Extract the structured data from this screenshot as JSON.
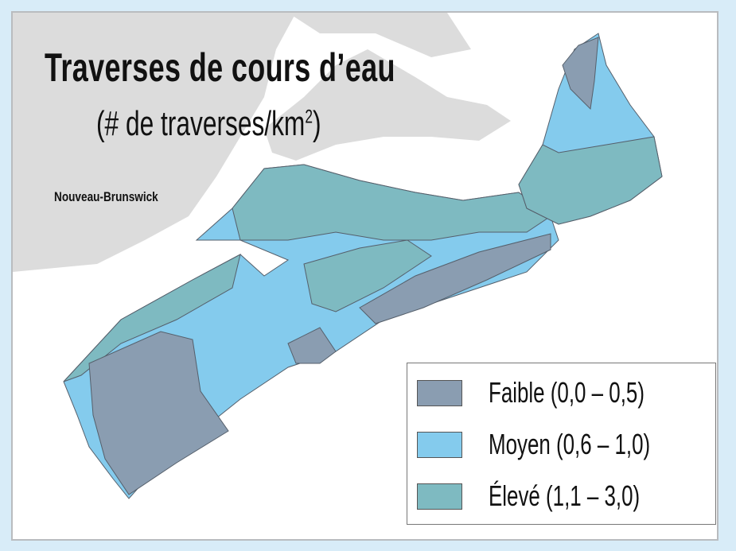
{
  "title": "Traverses de cours d’eau",
  "subtitle": "(# de traverses/km",
  "subtitle_sup": "2",
  "subtitle_close": ")",
  "region_label": "Nouveau-Brunswick",
  "colors": {
    "background": "#d8ecf8",
    "neighbor_land": "#dcdcdc",
    "faible": "#8a9db1",
    "moyen": "#84cbed",
    "eleve": "#7ebac1",
    "boundary": "#555f6b"
  },
  "legend": [
    {
      "label": "Faible (0,0 – 0,5)",
      "color": "#8a9db1"
    },
    {
      "label": "Moyen (0,6 – 1,0)",
      "color": "#84cbed"
    },
    {
      "label": "Élevé (1,1 – 3,0)",
      "color": "#7ebac1"
    }
  ]
}
